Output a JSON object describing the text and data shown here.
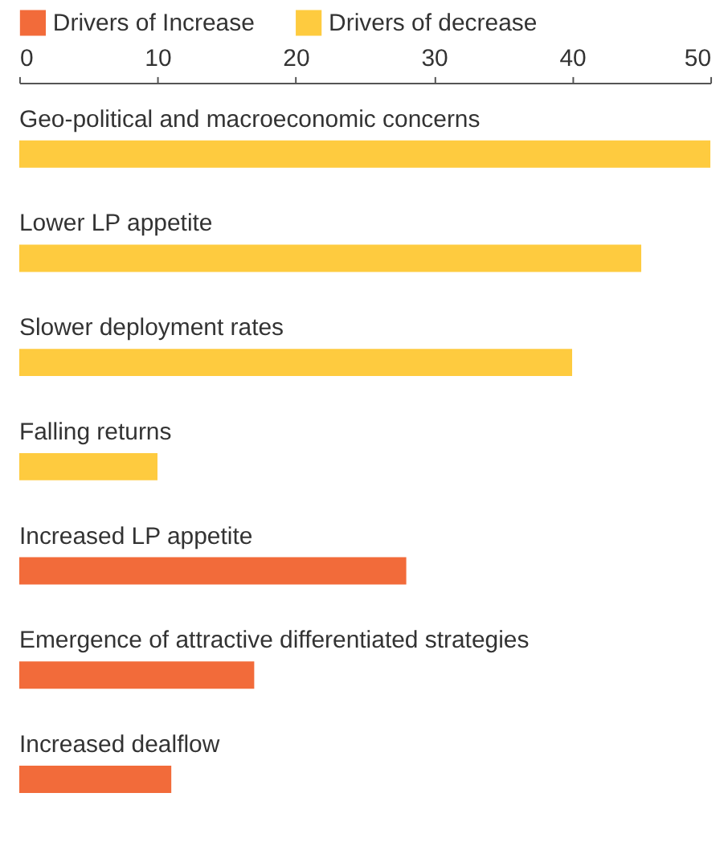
{
  "chart_data": {
    "type": "bar",
    "orientation": "horizontal",
    "categories": [
      "Geo-political and macroeconomic concerns",
      "Lower LP appetite",
      "Slower deployment rates",
      "Falling returns",
      "Increased LP appetite",
      "Emergence of attractive differentiated strategies",
      "Increased dealflow"
    ],
    "series": [
      {
        "name": "Drivers of Increase",
        "color": "#f26b3a",
        "values": [
          null,
          null,
          null,
          null,
          28,
          17,
          11
        ]
      },
      {
        "name": "Drivers of decrease",
        "color": "#fecb3f",
        "values": [
          50,
          45,
          40,
          10,
          null,
          null,
          null
        ]
      }
    ],
    "xlim": [
      0,
      50
    ],
    "xticks": [
      0,
      10,
      20,
      30,
      40,
      50
    ],
    "grid": false,
    "legend": "top left"
  }
}
